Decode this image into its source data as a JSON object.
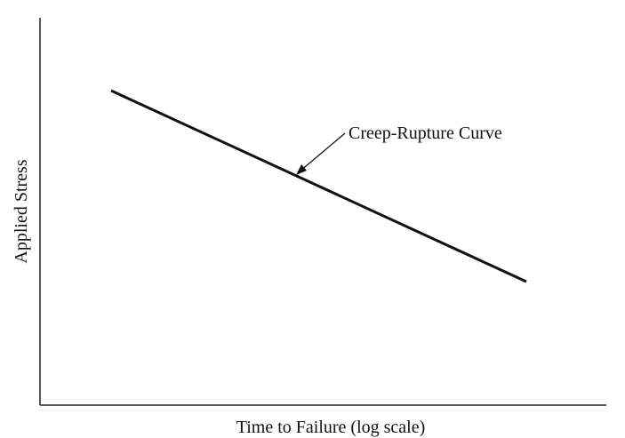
{
  "chart_data": {
    "type": "line",
    "title": "",
    "xlabel": "Time to Failure (log scale)",
    "ylabel": "Applied Stress",
    "xscale": "log",
    "grid": false,
    "ticks": false,
    "series": [
      {
        "trend": "decreasing",
        "shape": "straight line",
        "color": "#111111"
      }
    ],
    "annotations": [
      {
        "text": "Creep-Rupture Curve",
        "arrow": true
      }
    ]
  }
}
